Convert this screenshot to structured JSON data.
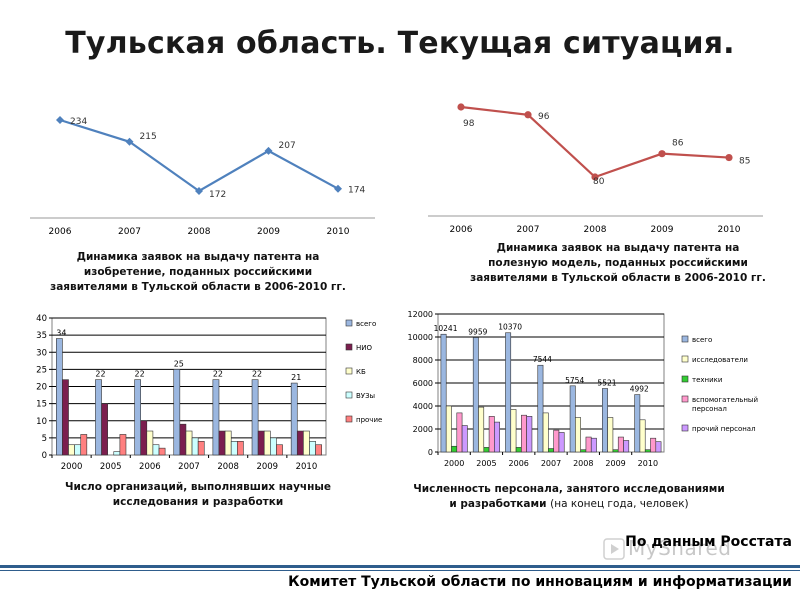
{
  "slide_title": "Тульская область. Текущая ситуация.",
  "source_note": "По данным Росстата",
  "watermark": "MyShared",
  "footer_text": "Комитет Тульской области по инновациям и информатизации",
  "colors": {
    "line1": "#4f81bd",
    "line2": "#c0504d",
    "title_rule": "#2f5d8c"
  },
  "chart_data": [
    {
      "type": "line",
      "categories": [
        "2006",
        "2007",
        "2008",
        "2009",
        "2010"
      ],
      "series": [
        {
          "values": [
            234,
            215,
            172,
            207,
            174
          ],
          "color": "#4f81bd"
        }
      ],
      "caption": "Динамика заявок на выдачу патента на изобретение, поданных российскими заявителями в Тульской области в 2006-2010 гг."
    },
    {
      "type": "line",
      "categories": [
        "2006",
        "2007",
        "2008",
        "2009",
        "2010"
      ],
      "series": [
        {
          "values": [
            98,
            96,
            80,
            86,
            85
          ],
          "color": "#c0504d"
        }
      ],
      "caption": "Динамика заявок на выдачу патента на полезную модель, поданных российскими заявителями в Тульской области в 2006-2010 гг."
    },
    {
      "type": "bar",
      "categories": [
        "2000",
        "2005",
        "2006",
        "2007",
        "2008",
        "2009",
        "2010"
      ],
      "ylim": [
        0,
        40
      ],
      "yticks": [
        0,
        5,
        10,
        15,
        20,
        25,
        30,
        35,
        40
      ],
      "series": [
        {
          "name": "всего",
          "values": [
            34,
            22,
            22,
            25,
            22,
            22,
            21
          ],
          "color": "#9bb7e0"
        },
        {
          "name": "НИО",
          "values": [
            22,
            15,
            10,
            9,
            7,
            7,
            7
          ],
          "color": "#7b1e4e"
        },
        {
          "name": "КБ",
          "values": [
            3,
            0,
            7,
            7,
            7,
            7,
            7
          ],
          "color": "#ffffcc"
        },
        {
          "name": "ВУЗы",
          "values": [
            3,
            1,
            3,
            5,
            4,
            5,
            4
          ],
          "color": "#ccffff"
        },
        {
          "name": "прочие",
          "values": [
            6,
            6,
            2,
            4,
            4,
            3,
            3
          ],
          "color": "#ff8080"
        }
      ],
      "data_labels": [
        "34",
        "22",
        "22",
        "25",
        "22",
        "22",
        "21"
      ],
      "caption": "Число организаций, выполнявших научные исследования и разработки"
    },
    {
      "type": "bar",
      "categories": [
        "2000",
        "2005",
        "2006",
        "2007",
        "2008",
        "2009",
        "2010"
      ],
      "ylim": [
        0,
        12000
      ],
      "yticks": [
        0,
        2000,
        4000,
        6000,
        8000,
        10000,
        12000
      ],
      "series": [
        {
          "name": "всего",
          "values": [
            10241,
            9959,
            10370,
            7544,
            5754,
            5521,
            4992
          ],
          "color": "#9bb7e0"
        },
        {
          "name": "исследователи",
          "values": [
            4000,
            3900,
            3700,
            3400,
            3000,
            3000,
            2800
          ],
          "color": "#ffffcc"
        },
        {
          "name": "техники",
          "values": [
            500,
            400,
            400,
            300,
            200,
            200,
            200
          ],
          "color": "#33cc33"
        },
        {
          "name": "вспомогательный персонал",
          "values": [
            3400,
            3100,
            3200,
            1900,
            1300,
            1300,
            1200
          ],
          "color": "#ff99cc"
        },
        {
          "name": "прочий персонал",
          "values": [
            2300,
            2600,
            3100,
            1700,
            1200,
            1000,
            900
          ],
          "color": "#cc99ff"
        }
      ],
      "data_labels": [
        "10241",
        "9959",
        "10370",
        "7544",
        "5754",
        "5521",
        "4992"
      ],
      "caption_bold": "Численность персонала, занятого исследованиями и разработками",
      "caption_normal": "(на конец года, человек)"
    }
  ]
}
